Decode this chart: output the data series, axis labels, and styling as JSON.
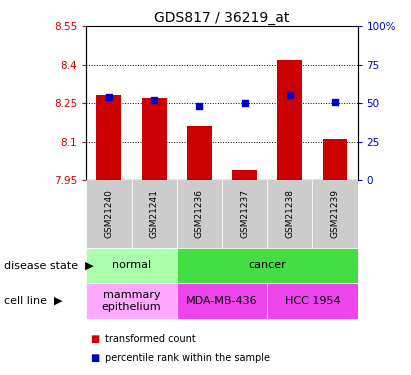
{
  "title": "GDS817 / 36219_at",
  "samples": [
    "GSM21240",
    "GSM21241",
    "GSM21236",
    "GSM21237",
    "GSM21238",
    "GSM21239"
  ],
  "transformed_counts": [
    8.28,
    8.27,
    8.16,
    7.99,
    8.42,
    8.11
  ],
  "percentile_ranks": [
    54,
    52,
    48,
    50,
    55,
    51
  ],
  "y_min": 7.95,
  "y_max": 8.55,
  "y_ticks": [
    7.95,
    8.1,
    8.25,
    8.4,
    8.55
  ],
  "y_tick_labels": [
    "7.95",
    "8.1",
    "8.25",
    "8.4",
    "8.55"
  ],
  "right_y_ticks": [
    0,
    25,
    50,
    75,
    100
  ],
  "right_y_tick_labels": [
    "0",
    "25",
    "50",
    "75",
    "100%"
  ],
  "bar_color": "#cc0000",
  "dot_color": "#0000cc",
  "disease_state": [
    {
      "label": "normal",
      "cols": [
        0,
        1
      ],
      "color": "#aaffaa"
    },
    {
      "label": "cancer",
      "cols": [
        2,
        3,
        4,
        5
      ],
      "color": "#44dd44"
    }
  ],
  "cell_line": [
    {
      "label": "mammary\nepithelium",
      "cols": [
        0,
        1
      ],
      "color": "#ffaaff"
    },
    {
      "label": "MDA-MB-436",
      "cols": [
        2,
        3
      ],
      "color": "#ee44ee"
    },
    {
      "label": "HCC 1954",
      "cols": [
        4,
        5
      ],
      "color": "#ee44ee"
    }
  ],
  "sample_bg_color": "#cccccc",
  "left_label_color": "#cc0000",
  "right_label_color": "#0000cc",
  "title_fontsize": 10,
  "axis_fontsize": 7.5,
  "sample_fontsize": 6.5,
  "legend_fontsize": 7,
  "annotation_fontsize": 8,
  "label_fontsize": 8
}
